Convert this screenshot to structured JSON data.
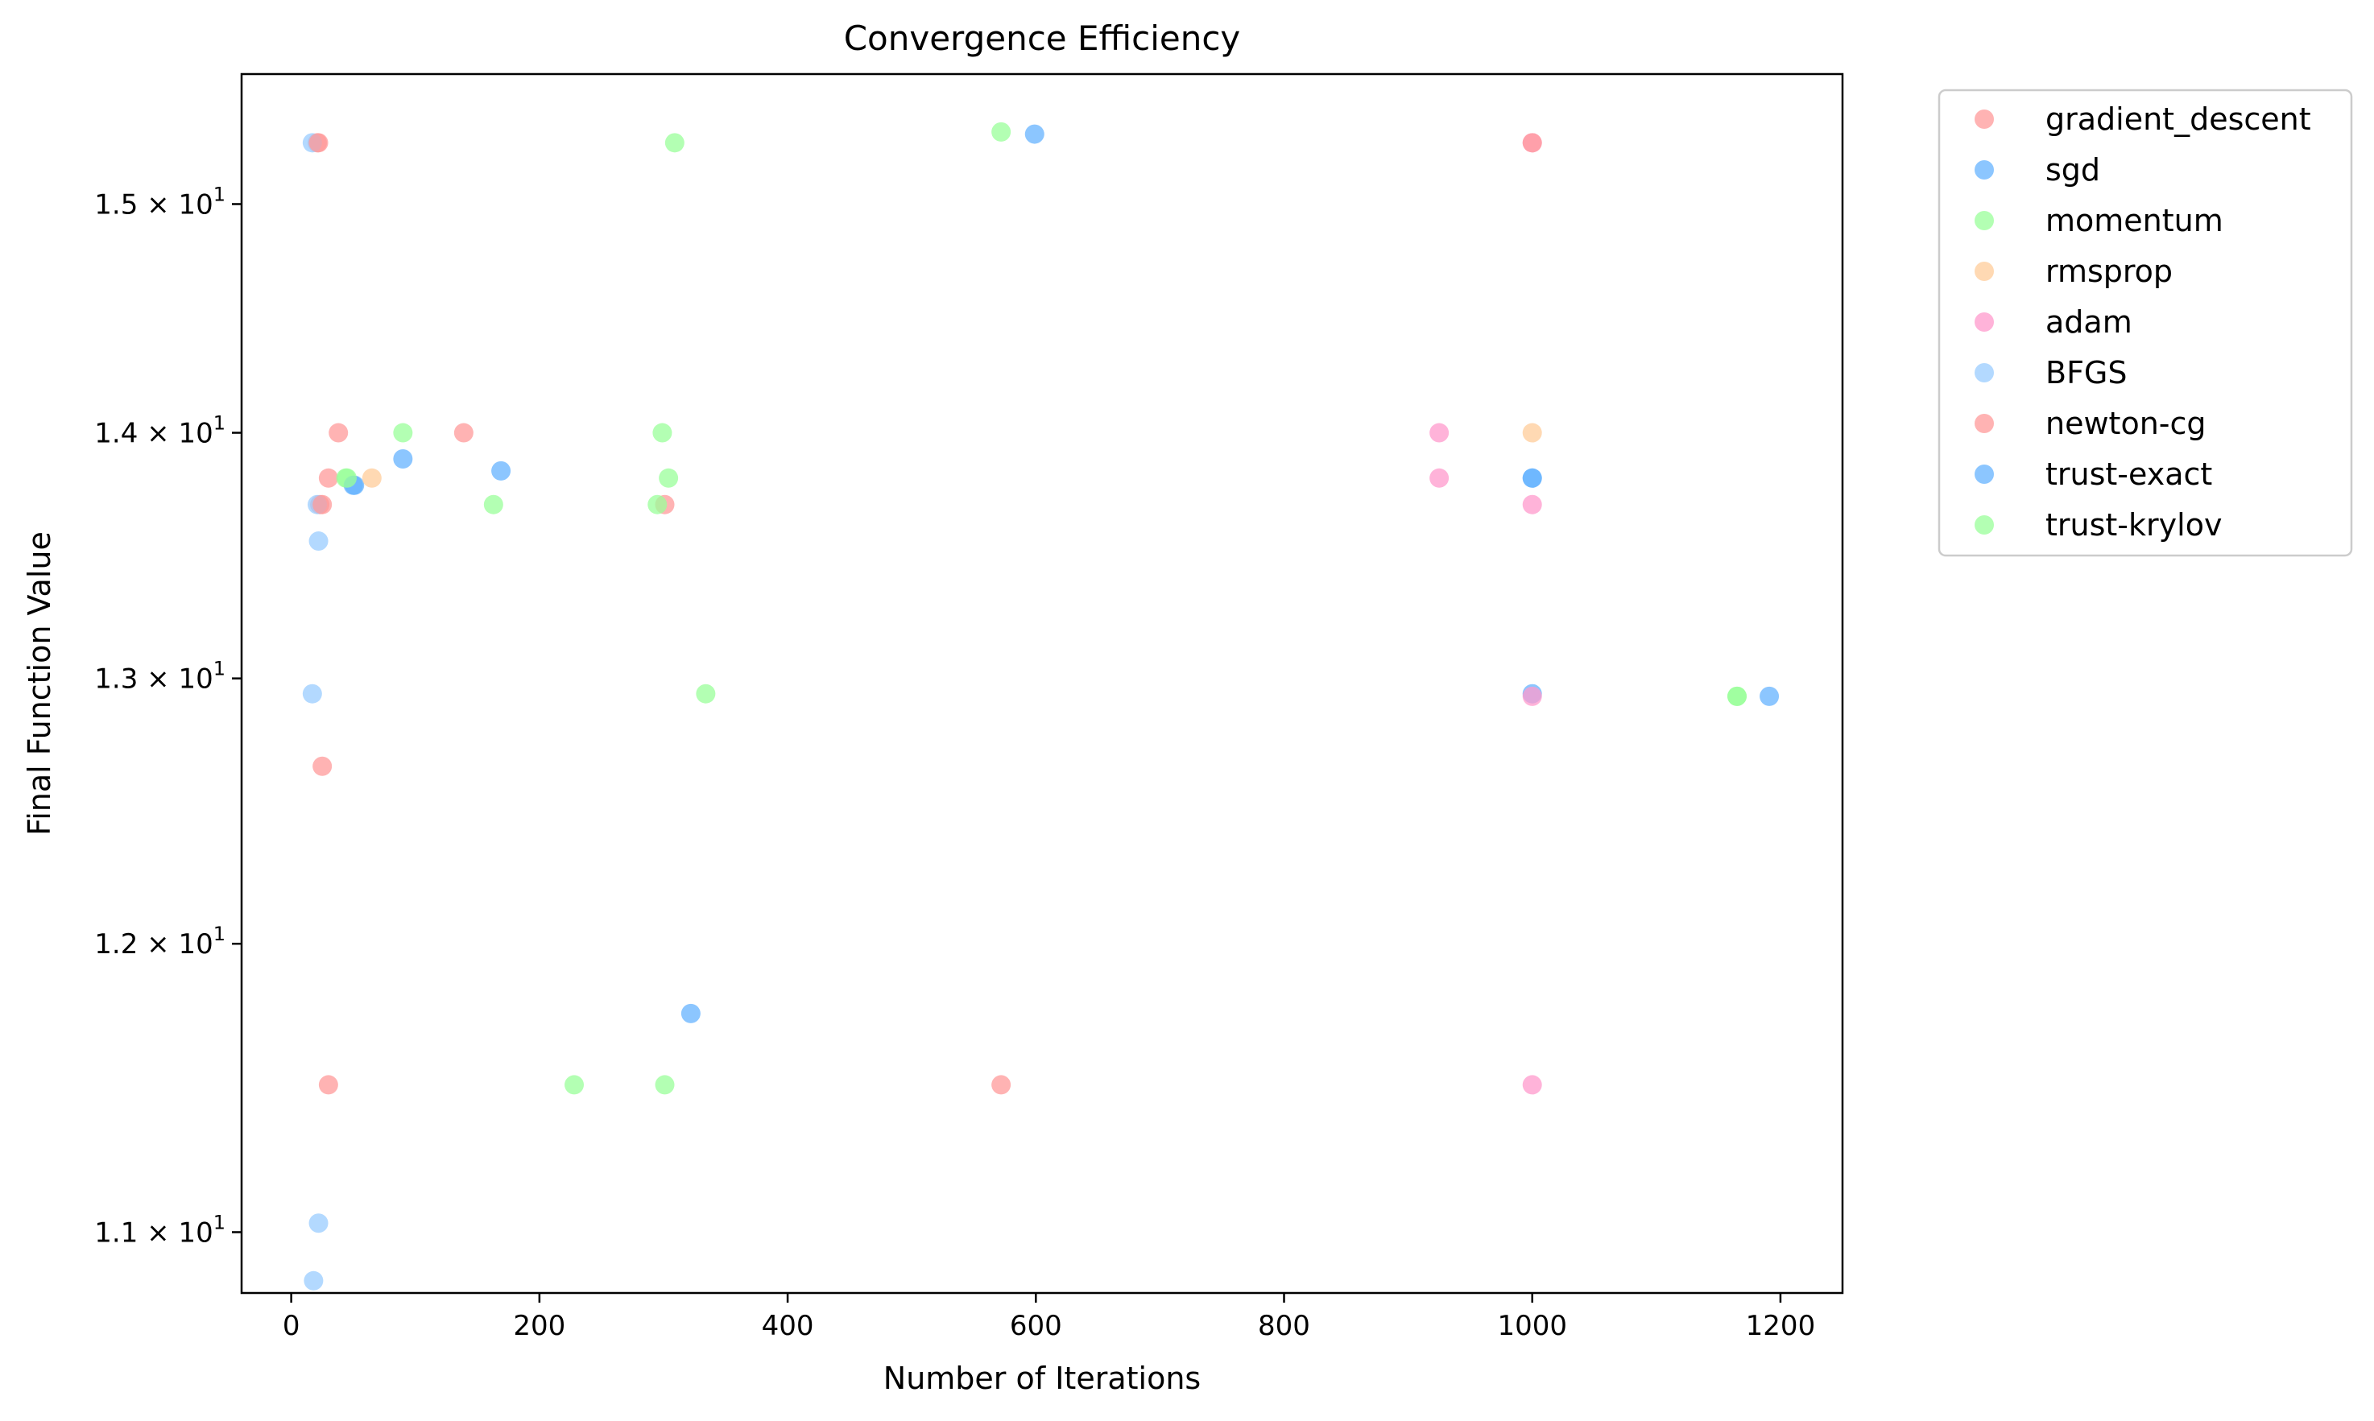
{
  "chart_data": {
    "type": "scatter",
    "title": "Convergence Efficiency",
    "xlabel": "Number of Iterations",
    "ylabel": "Final Function Value",
    "xlim": [
      -40,
      1250
    ],
    "ylim": [
      10.8,
      15.6
    ],
    "yscale": "log",
    "xticks": [
      0,
      200,
      400,
      600,
      800,
      1000,
      1200
    ],
    "xtick_labels": [
      "0",
      "200",
      "400",
      "600",
      "800",
      "1000",
      "1200"
    ],
    "yticks": [
      11,
      12,
      13,
      14,
      15
    ],
    "ytick_labels": [
      "1.1 × 10",
      "1.2 × 10",
      "1.3 × 10",
      "1.4 × 10",
      "1.5 × 10"
    ],
    "ytick_exponent": "1",
    "legend_position": "outside-upper-right",
    "grid": false,
    "series": [
      {
        "name": "gradient_descent",
        "color": "#ff9999",
        "points": [
          [
            21,
            15.28
          ],
          [
            38,
            14.0
          ],
          [
            30,
            13.81
          ],
          [
            23,
            13.7
          ],
          [
            25,
            12.66
          ],
          [
            30,
            11.5
          ],
          [
            139,
            14.0
          ],
          [
            301,
            13.7
          ],
          [
            572,
            11.5
          ]
        ]
      },
      {
        "name": "sgd",
        "color": "#66b3ff",
        "points": [
          [
            599,
            15.32
          ],
          [
            51,
            13.78
          ],
          [
            90,
            13.89
          ],
          [
            169,
            13.84
          ],
          [
            322,
            11.75
          ],
          [
            1000,
            13.81
          ],
          [
            1000,
            12.94
          ],
          [
            1191,
            12.93
          ]
        ]
      },
      {
        "name": "momentum",
        "color": "#99ff99",
        "points": [
          [
            572,
            15.33
          ],
          [
            309,
            15.28
          ],
          [
            90,
            14.0
          ],
          [
            299,
            14.0
          ],
          [
            304,
            13.81
          ],
          [
            44,
            13.81
          ],
          [
            163,
            13.7
          ],
          [
            295,
            13.7
          ],
          [
            334,
            12.94
          ],
          [
            228,
            11.5
          ],
          [
            301,
            11.5
          ],
          [
            1165,
            12.93
          ]
        ]
      },
      {
        "name": "rmsprop",
        "color": "#ffcc99",
        "points": [
          [
            65,
            13.81
          ],
          [
            1000,
            14.0
          ]
        ]
      },
      {
        "name": "adam",
        "color": "#ff99cc",
        "points": [
          [
            925,
            14.0
          ],
          [
            925,
            13.81
          ],
          [
            1000,
            15.28
          ],
          [
            1000,
            13.7
          ],
          [
            1000,
            12.93
          ],
          [
            1000,
            11.5
          ]
        ]
      },
      {
        "name": "BFGS",
        "color": "#99ccff",
        "points": [
          [
            17,
            15.28
          ],
          [
            21,
            13.7
          ],
          [
            22,
            13.55
          ],
          [
            17,
            12.94
          ],
          [
            22,
            11.03
          ],
          [
            18,
            10.84
          ]
        ]
      },
      {
        "name": "newton-cg",
        "color": "#ff9999",
        "points": [
          [
            22,
            15.28
          ],
          [
            25,
            13.7
          ],
          [
            1000,
            15.28
          ]
        ]
      },
      {
        "name": "trust-exact",
        "color": "#66b3ff",
        "points": [
          [
            50,
            13.78
          ],
          [
            1000,
            13.81
          ]
        ]
      },
      {
        "name": "trust-krylov",
        "color": "#99ff99",
        "points": [
          [
            45,
            13.81
          ],
          [
            1165,
            12.93
          ]
        ]
      }
    ]
  }
}
